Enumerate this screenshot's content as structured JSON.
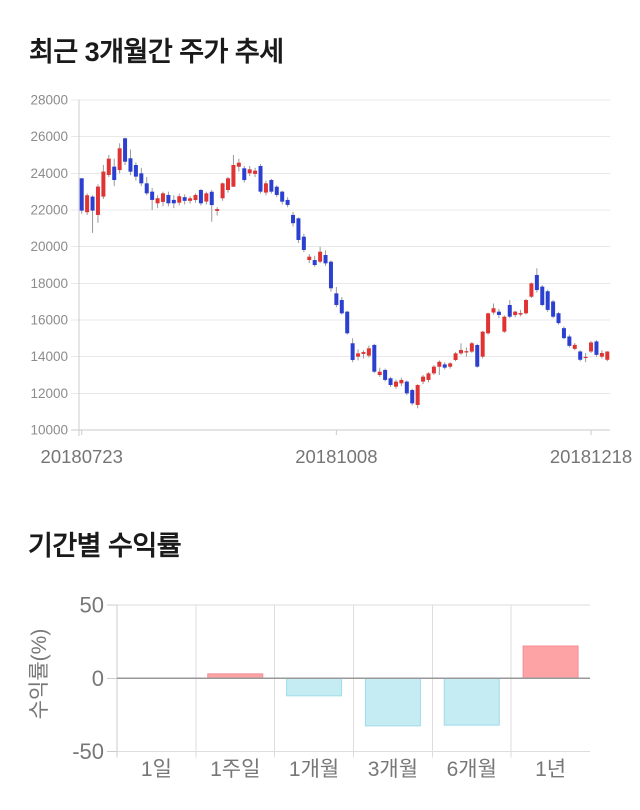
{
  "price_section": {
    "title": "최근 3개월간 주가 추세"
  },
  "returns_section": {
    "title": "기간별 수익률"
  },
  "chart_data": [
    {
      "type": "candlestick",
      "title": "최근 3개월간 주가 추세",
      "ylim": [
        10000,
        28000
      ],
      "y_ticks": [
        28000,
        26000,
        24000,
        22000,
        20000,
        18000,
        16000,
        14000,
        12000,
        10000
      ],
      "x_tick_labels": [
        "20180723",
        "20181008",
        "20181218"
      ],
      "x_tick_indices": [
        0,
        47,
        94
      ],
      "grid": true,
      "up_color": "#e03333",
      "down_color": "#2b3fd0",
      "wick_color": "#999999",
      "candles_ohlc": [
        [
          23730,
          23730,
          21800,
          21965
        ],
        [
          21880,
          22900,
          21730,
          22805
        ],
        [
          22730,
          22800,
          20750,
          21965
        ],
        [
          21730,
          23400,
          21300,
          23275
        ],
        [
          22730,
          24460,
          22600,
          24095
        ],
        [
          23910,
          25000,
          23800,
          24800
        ],
        [
          24365,
          24800,
          23300,
          23635
        ],
        [
          24180,
          25640,
          24000,
          25365
        ],
        [
          25910,
          25950,
          24455,
          24635
        ],
        [
          24820,
          25300,
          23900,
          24090
        ],
        [
          24455,
          24600,
          23600,
          23820
        ],
        [
          24000,
          24300,
          23300,
          23455
        ],
        [
          23455,
          23800,
          22800,
          22910
        ],
        [
          23000,
          23200,
          22000,
          22550
        ],
        [
          22365,
          22800,
          22100,
          22640
        ],
        [
          22440,
          23000,
          22200,
          22910
        ],
        [
          22820,
          23000,
          22200,
          22365
        ],
        [
          22550,
          22800,
          22100,
          22365
        ],
        [
          22400,
          22900,
          22250,
          22750
        ],
        [
          22700,
          22850,
          22300,
          22500
        ],
        [
          22500,
          22750,
          22350,
          22640
        ],
        [
          22545,
          22900,
          22400,
          22820
        ],
        [
          23090,
          23150,
          22250,
          22365
        ],
        [
          22460,
          23000,
          22300,
          22910
        ],
        [
          22995,
          23100,
          21360,
          22270
        ],
        [
          21950,
          22150,
          21700,
          22050
        ],
        [
          22640,
          23500,
          22500,
          23455
        ],
        [
          23090,
          23800,
          22950,
          23730
        ],
        [
          23270,
          25000,
          23270,
          24455
        ],
        [
          24360,
          24800,
          24100,
          24580
        ],
        [
          24275,
          24400,
          23500,
          23635
        ],
        [
          24000,
          24400,
          23850,
          24220
        ],
        [
          23965,
          24300,
          23800,
          24145
        ],
        [
          24400,
          24500,
          22900,
          23000
        ],
        [
          22950,
          23600,
          22800,
          23455
        ],
        [
          23635,
          23700,
          22900,
          23000
        ],
        [
          23270,
          23350,
          22700,
          22820
        ],
        [
          23000,
          23050,
          22300,
          22455
        ],
        [
          22550,
          22700,
          22150,
          22275
        ],
        [
          21730,
          21900,
          21100,
          21280
        ],
        [
          21545,
          21600,
          20200,
          20365
        ],
        [
          20545,
          20700,
          19700,
          19820
        ],
        [
          19270,
          19600,
          19100,
          19455
        ],
        [
          19270,
          19500,
          18900,
          19000
        ],
        [
          19180,
          20000,
          19100,
          19725
        ],
        [
          19545,
          19800,
          18950,
          19090
        ],
        [
          19180,
          19250,
          17545,
          17730
        ],
        [
          17455,
          17800,
          16700,
          16820
        ],
        [
          17090,
          17250,
          16300,
          16365
        ],
        [
          16455,
          16500,
          15200,
          15275
        ],
        [
          14730,
          15000,
          13700,
          13820
        ],
        [
          14000,
          14400,
          13800,
          14180
        ],
        [
          14150,
          14350,
          13900,
          14250
        ],
        [
          14055,
          14600,
          13950,
          14455
        ],
        [
          14640,
          14700,
          13100,
          13180
        ],
        [
          13000,
          13400,
          12900,
          13180
        ],
        [
          13275,
          13350,
          12650,
          12730
        ],
        [
          12820,
          12900,
          12350,
          12455
        ],
        [
          12365,
          12750,
          12250,
          12640
        ],
        [
          12545,
          12850,
          12400,
          12730
        ],
        [
          12640,
          12700,
          11900,
          12000
        ],
        [
          12180,
          12250,
          11350,
          11455
        ],
        [
          11365,
          12500,
          11180,
          12455
        ],
        [
          12640,
          13000,
          12500,
          12910
        ],
        [
          12730,
          13150,
          12600,
          13090
        ],
        [
          13090,
          13550,
          13000,
          13455
        ],
        [
          13450,
          13800,
          13000,
          13720
        ],
        [
          13580,
          13700,
          13300,
          13400
        ],
        [
          13450,
          13700,
          13350,
          13635
        ],
        [
          13820,
          14250,
          13750,
          14180
        ],
        [
          14180,
          14730,
          14100,
          14365
        ],
        [
          14230,
          14500,
          14000,
          14300
        ],
        [
          14275,
          14800,
          14200,
          14730
        ],
        [
          14635,
          14700,
          13400,
          13455
        ],
        [
          14000,
          15400,
          13900,
          15365
        ],
        [
          15275,
          16400,
          15200,
          16365
        ],
        [
          16410,
          16900,
          16300,
          16640
        ],
        [
          16455,
          16600,
          16100,
          16275
        ],
        [
          15365,
          16250,
          15300,
          16180
        ],
        [
          16820,
          17090,
          16100,
          16180
        ],
        [
          16270,
          16500,
          16150,
          16455
        ],
        [
          16300,
          16550,
          16200,
          16380
        ],
        [
          16365,
          17150,
          16300,
          17090
        ],
        [
          17270,
          18050,
          17200,
          18000
        ],
        [
          18455,
          18820,
          17500,
          17635
        ],
        [
          17820,
          17900,
          16750,
          16820
        ],
        [
          17570,
          17650,
          16450,
          16550
        ],
        [
          17010,
          17100,
          16100,
          16180
        ],
        [
          16370,
          16450,
          15750,
          15830
        ],
        [
          15555,
          15650,
          14950,
          15010
        ],
        [
          15100,
          15200,
          14500,
          14590
        ],
        [
          14425,
          14750,
          14350,
          14645
        ],
        [
          14283,
          14350,
          13750,
          13830
        ],
        [
          13940,
          14200,
          13700,
          13990
        ],
        [
          14283,
          14850,
          14200,
          14775
        ],
        [
          14830,
          14900,
          14000,
          14100
        ],
        [
          14000,
          14350,
          13900,
          14200
        ],
        [
          13830,
          14300,
          13750,
          14280
        ]
      ]
    },
    {
      "type": "bar",
      "title": "기간별 수익률",
      "categories": [
        "1일",
        "1주일",
        "1개월",
        "3개월",
        "6개월",
        "1년"
      ],
      "values": [
        0,
        3,
        -12,
        -32.5,
        -32,
        22
      ],
      "ylabel": "수익률(%)",
      "y_ticks": [
        50,
        0,
        -50
      ],
      "ylim": [
        -50,
        50
      ],
      "positive_color": "#fda3a5",
      "positive_border": "#f28e96",
      "negative_color": "#c5ebf3",
      "negative_border": "#9fdcea"
    }
  ],
  "colors": {
    "grid": "#e8e8e8",
    "axis": "#cccccc",
    "zero_line": "#999999",
    "tick_text": "#8c8c8c",
    "x_tick_text": "#757575",
    "bar_tick_text": "#777777"
  }
}
